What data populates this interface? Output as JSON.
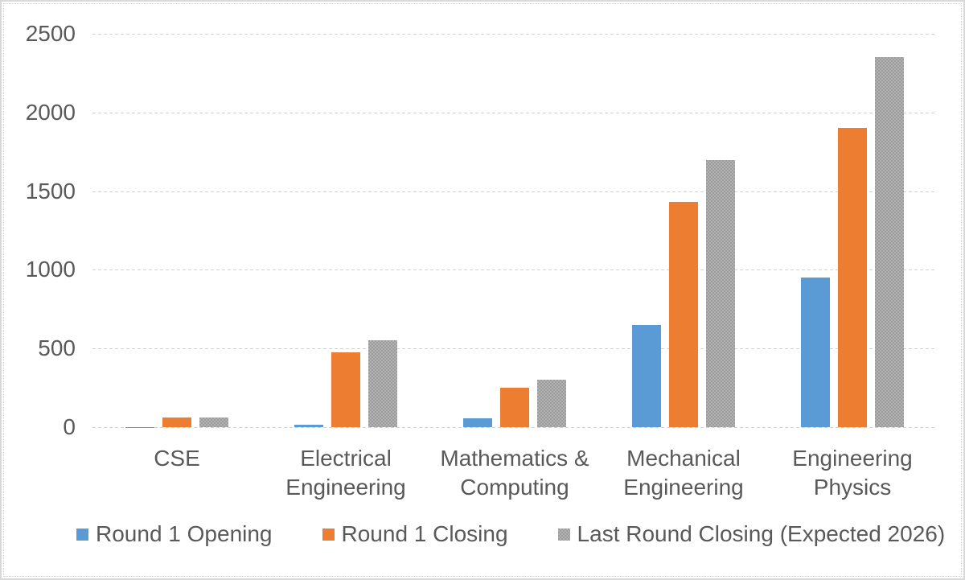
{
  "chart_data": {
    "type": "bar",
    "title": "",
    "categories": [
      "CSE",
      "Electrical Engineering",
      "Mathematics & Computing",
      "Mechanical Engineering",
      "Engineering Physics"
    ],
    "series": [
      {
        "name": "Round 1 Opening",
        "color": "#5B9BD5",
        "fill": "solid",
        "values": [
          2,
          15,
          55,
          650,
          950
        ]
      },
      {
        "name": "Round 1 Closing",
        "color": "#ED7D31",
        "fill": "solid",
        "values": [
          60,
          475,
          250,
          1430,
          1900
        ]
      },
      {
        "name": "Last Round Closing (Expected 2026)",
        "color": "#A6A6A6",
        "fill": "checker",
        "values": [
          60,
          550,
          300,
          1700,
          2350
        ]
      }
    ],
    "y_axis": {
      "min": 0,
      "max": 2500,
      "step": 500,
      "tick_labels": [
        "0",
        "500",
        "1000",
        "1500",
        "2000",
        "2500"
      ]
    },
    "x_axis_label": "",
    "y_axis_label": "",
    "grid": true,
    "gridline_style": "dashed",
    "legend_position": "bottom"
  },
  "colors": {
    "series_blue": "#5B9BD5",
    "series_orange": "#ED7D31",
    "series_gray": "#A6A6A6",
    "gridline": "#D9D9D9",
    "text": "#595959",
    "background": "#FFFFFF",
    "frame_border": "#D9D9D9"
  }
}
